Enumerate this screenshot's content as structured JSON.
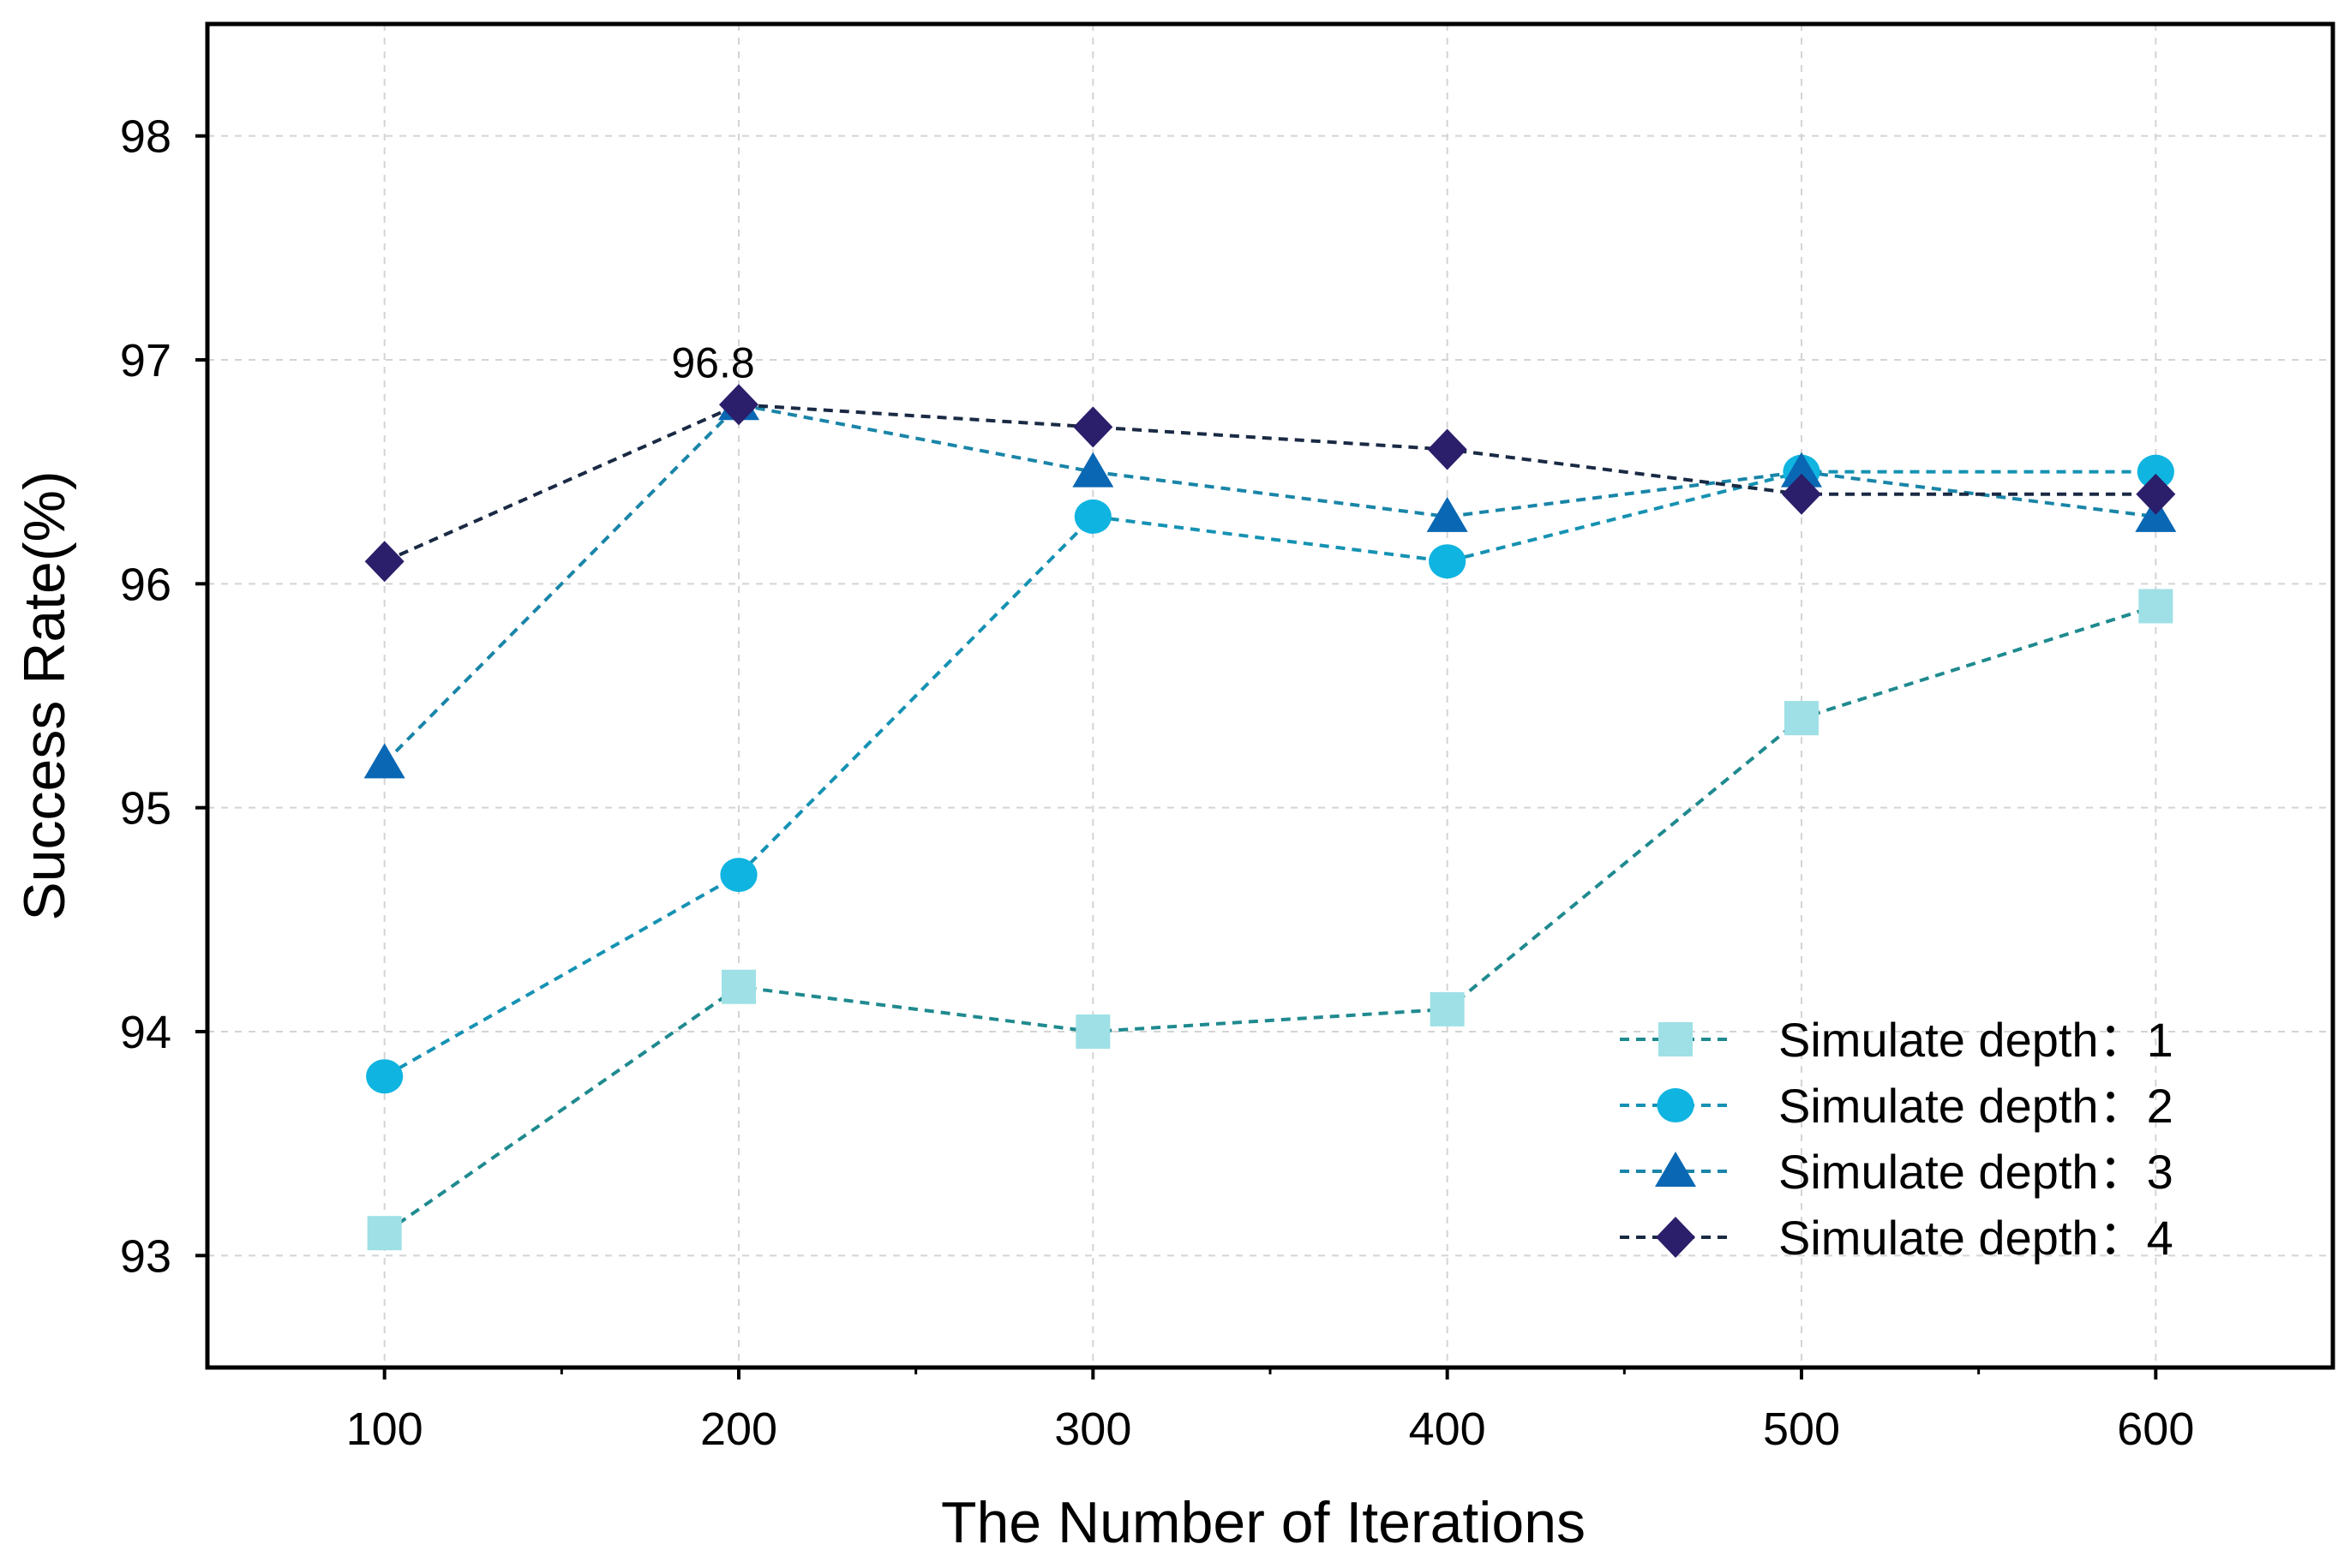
{
  "chart_data": {
    "type": "line",
    "title": "",
    "xlabel": "The Number of Iterations",
    "ylabel": "Success Rate(%)",
    "x": [
      100,
      200,
      300,
      400,
      500,
      600
    ],
    "xticks": [
      "100",
      "200",
      "300",
      "400",
      "500",
      "600"
    ],
    "xlim": [
      50,
      650
    ],
    "ylim": [
      92.5,
      98.5
    ],
    "yticks": [
      "93",
      "94",
      "95",
      "96",
      "97",
      "98"
    ],
    "grid": true,
    "legend_position": "bottom-right",
    "series": [
      {
        "name": "Simulate depth：1",
        "marker": "square",
        "color": "#9ee0e6",
        "line_color": "#1f8a8f",
        "values": [
          93.1,
          94.2,
          94.0,
          94.1,
          95.4,
          95.9
        ]
      },
      {
        "name": "Simulate depth：2",
        "marker": "circle",
        "color": "#10b4e0",
        "line_color": "#1592b3",
        "values": [
          93.8,
          94.7,
          96.3,
          96.1,
          96.5,
          96.5
        ]
      },
      {
        "name": "Simulate depth：3",
        "marker": "triangle",
        "color": "#0a67b3",
        "line_color": "#1985a8",
        "values": [
          95.2,
          96.8,
          96.5,
          96.3,
          96.5,
          96.3
        ]
      },
      {
        "name": "Simulate depth：4",
        "marker": "diamond",
        "color": "#2b1f6b",
        "line_color": "#1a2a44",
        "values": [
          96.1,
          96.8,
          96.7,
          96.6,
          96.4,
          96.4
        ]
      }
    ],
    "annotations": [
      {
        "text": "96.8",
        "x": 200,
        "y": 96.8
      }
    ]
  }
}
